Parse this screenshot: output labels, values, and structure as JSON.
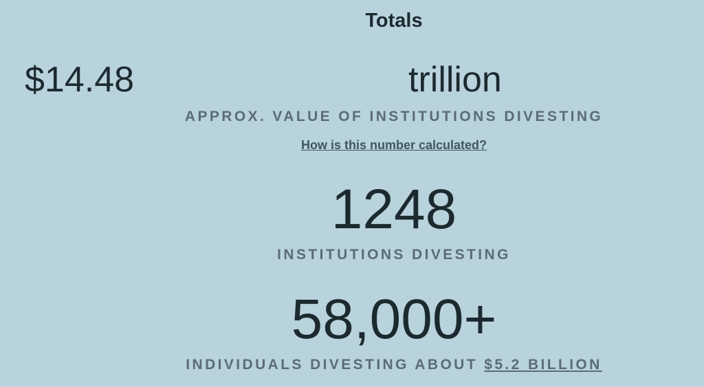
{
  "header": {
    "title": "Totals"
  },
  "stats": [
    {
      "value": "$14.48",
      "unit": "trillion",
      "label": "APPROX. VALUE OF INSTITUTIONS DIVESTING",
      "link": "How is this number calculated?"
    },
    {
      "value": "1248",
      "label": "INSTITUTIONS DIVESTING"
    },
    {
      "value": "58,000+",
      "label": "INDIVIDUALS DIVESTING ABOUT",
      "link": "$5.2 BILLION"
    }
  ]
}
